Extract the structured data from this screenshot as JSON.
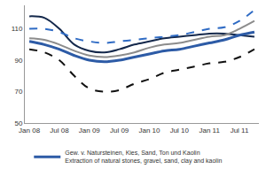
{
  "chart_data": {
    "type": "line",
    "categories": [
      "Jan 08",
      null,
      "Jul 08",
      null,
      "Jan 09",
      null,
      "Jul 09",
      null,
      "Jan 10",
      null,
      "Jul 10",
      null,
      "Jan 11",
      null,
      "Jul 11",
      null
    ],
    "series": [
      {
        "color": "#14284b",
        "line_style": "solid",
        "values": [
          118,
          117,
          110,
          100,
          96,
          95,
          97,
          100,
          102,
          104,
          105,
          106,
          107,
          107,
          106,
          105
        ]
      },
      {
        "color": "#2f6bc4",
        "line_style": "dash",
        "values": [
          110,
          110,
          108,
          104,
          102,
          101,
          102,
          103,
          104,
          105,
          106,
          108,
          110,
          111,
          115,
          122
        ]
      },
      {
        "color": "#8c8c8c",
        "line_style": "solid",
        "values": [
          104,
          103,
          100,
          96,
          93,
          92,
          93,
          95,
          98,
          100,
          101,
          103,
          105,
          106,
          110,
          115
        ]
      },
      {
        "name": "Gew. v. Natursteinen, Kies, Sand, Ton und Kaolin\nExtraction of natural stones, gravel, sand, clay and kaolin",
        "color": "#2d5ba6",
        "line_style": "solid",
        "values": [
          102,
          100,
          97,
          93,
          90,
          89,
          90,
          92,
          94,
          96,
          97,
          99,
          101,
          103,
          106,
          108
        ]
      },
      {
        "color": "#111111",
        "line_style": "dash",
        "values": [
          97,
          95,
          90,
          80,
          72,
          70,
          71,
          75,
          78,
          82,
          84,
          86,
          88,
          89,
          92,
          97
        ]
      }
    ],
    "ylim": [
      50,
      125
    ],
    "yticks": [
      50,
      70,
      90,
      110
    ],
    "grid": false,
    "legend": "bottom"
  }
}
